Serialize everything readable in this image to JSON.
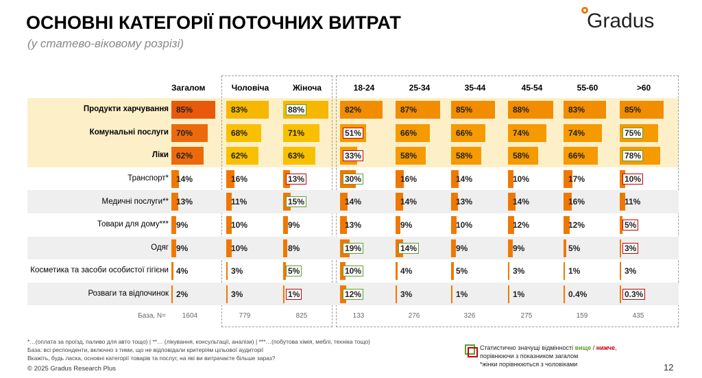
{
  "header": {
    "title": "ОСНОВНІ КАТЕГОРІЇ ПОТОЧНИХ ВИТРАТ",
    "subtitle": "(у статево-віковому розрізі)",
    "logo": "Gradus"
  },
  "table": {
    "columns": [
      "Загалом",
      "Чоловіча",
      "Жіноча",
      "18-24",
      "25-34",
      "35-44",
      "45-54",
      "55-60",
      ">60"
    ],
    "scale_max": 100,
    "flag_colors": {
      "higher": "#5aa02c",
      "lower": "#c00000"
    },
    "rows": [
      {
        "label": "Продукти харчування",
        "highlight": true,
        "colors": [
          "#e8590c",
          "#f5b700",
          "#f28c00"
        ],
        "values": [
          85,
          83,
          88,
          82,
          87,
          85,
          88,
          83,
          85
        ],
        "value_labels": [
          "85%",
          "83%",
          "88%",
          "82%",
          "87%",
          "85%",
          "88%",
          "83%",
          "85%"
        ],
        "flags": [
          null,
          null,
          "higher",
          null,
          null,
          null,
          null,
          null,
          null
        ]
      },
      {
        "label": "Комунальні послуги",
        "highlight": true,
        "colors": [
          "#ec6a0c",
          "#f8c000",
          "#f59a00"
        ],
        "values": [
          70,
          68,
          71,
          51,
          66,
          66,
          74,
          74,
          75
        ],
        "value_labels": [
          "70%",
          "68%",
          "71%",
          "51%",
          "66%",
          "66%",
          "74%",
          "74%",
          "75%"
        ],
        "flags": [
          null,
          null,
          null,
          "lower",
          null,
          null,
          null,
          null,
          "higher"
        ]
      },
      {
        "label": "Ліки",
        "highlight": true,
        "colors": [
          "#ec6a0c",
          "#f8c000",
          "#f59a00"
        ],
        "values": [
          62,
          62,
          63,
          33,
          58,
          58,
          58,
          66,
          78
        ],
        "value_labels": [
          "62%",
          "62%",
          "63%",
          "33%",
          "58%",
          "58%",
          "58%",
          "66%",
          "78%"
        ],
        "flags": [
          null,
          null,
          null,
          "lower",
          null,
          null,
          null,
          null,
          "higher"
        ]
      },
      {
        "label": "Транспорт*",
        "highlight": false,
        "colors": [
          "#f07800",
          "#f07800",
          "#f07800"
        ],
        "values": [
          14,
          16,
          13,
          30,
          16,
          14,
          10,
          17,
          10
        ],
        "value_labels": [
          "14%",
          "16%",
          "13%",
          "30%",
          "16%",
          "14%",
          "10%",
          "17%",
          "10%"
        ],
        "flags": [
          null,
          null,
          "lower",
          "higher",
          null,
          null,
          null,
          null,
          "lower"
        ]
      },
      {
        "label": "Медичні послуги**",
        "highlight": false,
        "colors": [
          "#f07800",
          "#f07800",
          "#f07800"
        ],
        "values": [
          13,
          11,
          15,
          14,
          14,
          13,
          14,
          16,
          11
        ],
        "value_labels": [
          "13%",
          "11%",
          "15%",
          "14%",
          "14%",
          "13%",
          "14%",
          "16%",
          "11%"
        ],
        "flags": [
          null,
          null,
          "higher",
          null,
          null,
          null,
          null,
          null,
          null
        ]
      },
      {
        "label": "Товари для дому***",
        "highlight": false,
        "colors": [
          "#f07800",
          "#f07800",
          "#f07800"
        ],
        "values": [
          9,
          10,
          9,
          13,
          9,
          10,
          12,
          12,
          5
        ],
        "value_labels": [
          "9%",
          "10%",
          "9%",
          "13%",
          "9%",
          "10%",
          "12%",
          "12%",
          "5%"
        ],
        "flags": [
          null,
          null,
          null,
          null,
          null,
          null,
          null,
          null,
          "lower"
        ]
      },
      {
        "label": "Одяг",
        "highlight": false,
        "colors": [
          "#f07800",
          "#f07800",
          "#f07800"
        ],
        "values": [
          9,
          10,
          8,
          19,
          14,
          9,
          9,
          5,
          3
        ],
        "value_labels": [
          "9%",
          "10%",
          "8%",
          "19%",
          "14%",
          "9%",
          "9%",
          "5%",
          "3%"
        ],
        "flags": [
          null,
          null,
          null,
          "higher",
          "higher",
          null,
          null,
          null,
          "lower"
        ]
      },
      {
        "label": "Косметика та засоби особистої гігієни",
        "highlight": false,
        "colors": [
          "#f07800",
          "#f07800",
          "#f07800"
        ],
        "values": [
          4,
          3,
          5,
          10,
          4,
          5,
          3,
          1,
          3
        ],
        "value_labels": [
          "4%",
          "3%",
          "5%",
          "10%",
          "4%",
          "5%",
          "3%",
          "1%",
          "3%"
        ],
        "flags": [
          null,
          null,
          "higher",
          "higher",
          null,
          null,
          null,
          null,
          null
        ]
      },
      {
        "label": "Розваги та відпочинок",
        "highlight": false,
        "colors": [
          "#f07800",
          "#f07800",
          "#f07800"
        ],
        "values": [
          2,
          3,
          1,
          12,
          3,
          1,
          1,
          0.4,
          0.3
        ],
        "value_labels": [
          "2%",
          "3%",
          "1%",
          "12%",
          "3%",
          "1%",
          "1%",
          "0.4%",
          "0.3%"
        ],
        "flags": [
          null,
          null,
          "lower",
          "higher",
          null,
          null,
          null,
          null,
          "lower"
        ]
      }
    ],
    "base": {
      "label": "База, N=",
      "values": [
        1604,
        779,
        825,
        133,
        276,
        326,
        275,
        159,
        435
      ]
    }
  },
  "footnotes": [
    "*…(оплата за проїзд, паливо для авто тощо) | **… (лікування, консультації, аналізи) | ***…(побутова хімія, меблі, техніка тощо)",
    "База: всі респонденти, включно з тими, що не відповідали критеріям цільової аудиторії",
    "Вкажіть, будь ласка, основні  категорії товарів та послуг, на які ви витрачаєте більше зараз?"
  ],
  "legend": {
    "text_before": "Статистично значущі відмінності ",
    "higher": "вище",
    "separator": " / ",
    "lower": "нижче",
    "text_after": ",",
    "line2": "порівнюючи з показником загалом",
    "line3": "*жінки порівнюються з чоловіками"
  },
  "footer": {
    "copyright": "© 2025 Gradus Research Plus",
    "page": "12"
  }
}
